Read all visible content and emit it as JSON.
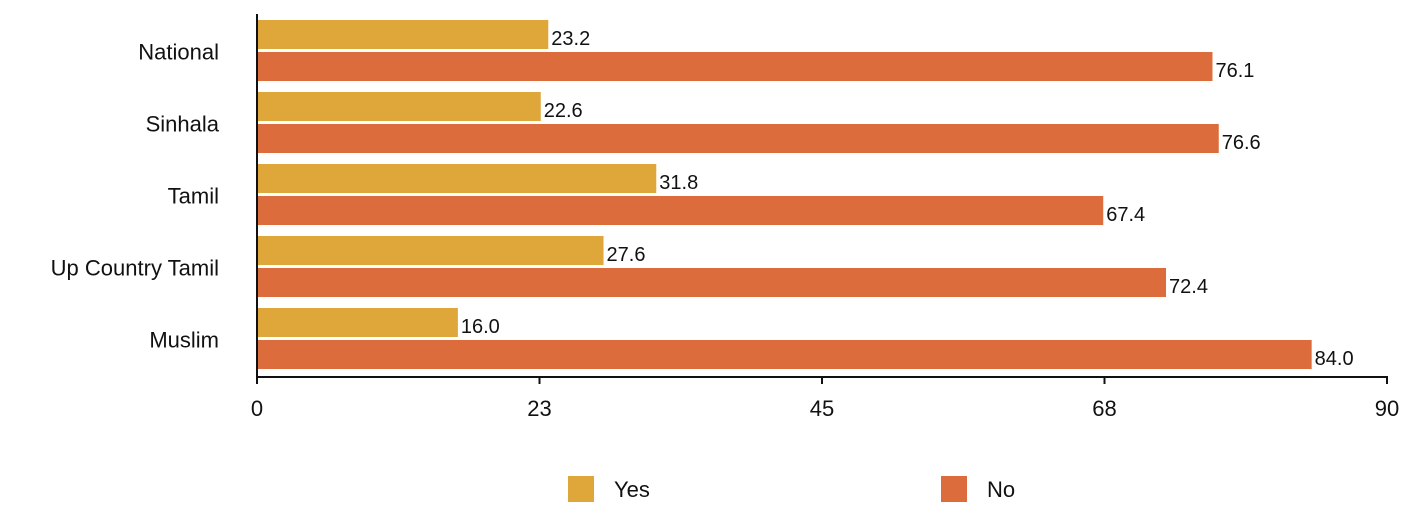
{
  "chart_data": {
    "type": "bar",
    "orientation": "horizontal",
    "categories": [
      "National",
      "Sinhala",
      "Tamil",
      "Up Country Tamil",
      "Muslim"
    ],
    "series": [
      {
        "name": "Yes",
        "values": [
          23.2,
          22.6,
          31.8,
          27.6,
          16.0
        ]
      },
      {
        "name": "No",
        "values": [
          76.1,
          76.6,
          67.4,
          72.4,
          84.0
        ]
      }
    ],
    "value_labels": [
      [
        "23.2",
        "22.6",
        "31.8",
        "27.6",
        "16.0"
      ],
      [
        "76.1",
        "76.6",
        "67.4",
        "72.4",
        "84.0"
      ]
    ],
    "xlim": [
      0,
      90
    ],
    "x_ticks": [
      "0",
      "23",
      "45",
      "68",
      "90"
    ],
    "grid": false,
    "legend": "bottom",
    "colors": {
      "Yes": "#dfa63a",
      "No": "#dc6c3b"
    }
  }
}
